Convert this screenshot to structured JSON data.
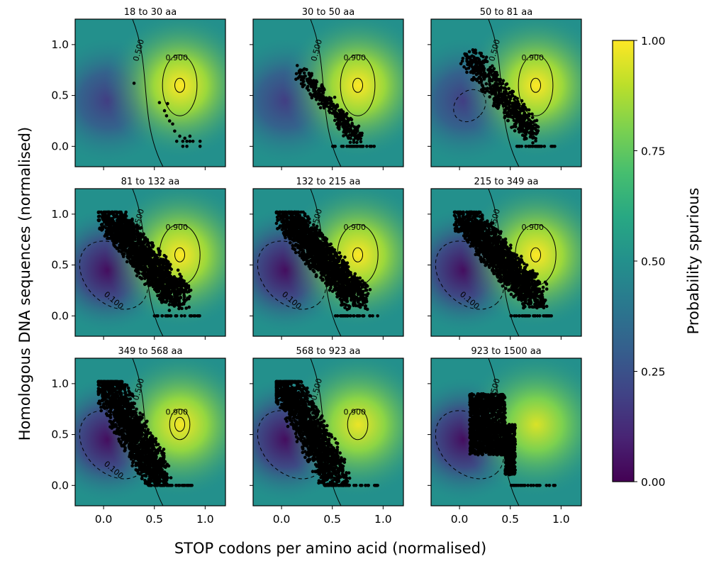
{
  "chart_data": {
    "type": "scatter",
    "xlabel": "STOP codons per amino acid (normalised)",
    "ylabel": "Homologous DNA sequences (normalised)",
    "colorbar": {
      "label": "Probability spurious",
      "ticks": [
        "0.00",
        "0.25",
        "0.50",
        "0.75",
        "1.00"
      ],
      "range": [
        0,
        1
      ],
      "colormap": "viridis"
    },
    "xlim": [
      -0.28,
      1.2
    ],
    "ylim": [
      -0.2,
      1.25
    ],
    "xticks": [
      "0.0",
      "0.5",
      "1.0"
    ],
    "yticks": [
      "0.0",
      "0.5",
      "1.0"
    ],
    "background": {
      "description": "logistic surface",
      "high_center": [
        0.75,
        0.6
      ],
      "low_center": [
        0.03,
        0.45
      ]
    },
    "contour_levels": [
      "0.100",
      "0.500",
      "0.900"
    ],
    "panels": [
      {
        "title": "18 to 30 aa",
        "points": [
          [
            0.3,
            0.62
          ],
          [
            0.55,
            0.43
          ],
          [
            0.63,
            0.42
          ],
          [
            0.6,
            0.35
          ],
          [
            0.62,
            0.3
          ],
          [
            0.65,
            0.25
          ],
          [
            0.68,
            0.22
          ],
          [
            0.7,
            0.15
          ],
          [
            0.75,
            0.1
          ],
          [
            0.72,
            0.05
          ],
          [
            0.78,
            0.05
          ],
          [
            0.8,
            0.08
          ],
          [
            0.82,
            0.05
          ],
          [
            0.85,
            0.05
          ],
          [
            0.88,
            0.05
          ],
          [
            0.85,
            0.1
          ],
          [
            0.95,
            0.05
          ],
          [
            0.95,
            0.0
          ],
          [
            0.78,
            0.0
          ],
          [
            0.82,
            0.0
          ]
        ],
        "intensity": 1.0
      },
      {
        "title": "30 to 50 aa",
        "points_region": "sparse diagonal band",
        "intensity": 1.0
      },
      {
        "title": "50 to 81 aa",
        "points_region": "diagonal band",
        "intensity": 1.0
      },
      {
        "title": "81 to 132 aa",
        "points_region": "dense diagonal band",
        "intensity": 1.0
      },
      {
        "title": "132 to 215 aa",
        "points_region": "dense diagonal band",
        "intensity": 1.0
      },
      {
        "title": "215 to 349 aa",
        "points_region": "dense diagonal band",
        "intensity": 1.0
      },
      {
        "title": "349 to 568 aa",
        "points_region": "dense band left",
        "intensity": 0.95
      },
      {
        "title": "568 to 923 aa",
        "points_region": "dense band left",
        "intensity": 0.9
      },
      {
        "title": "923 to 1500 aa",
        "points_region": "cluster",
        "intensity": 0.8
      }
    ]
  }
}
